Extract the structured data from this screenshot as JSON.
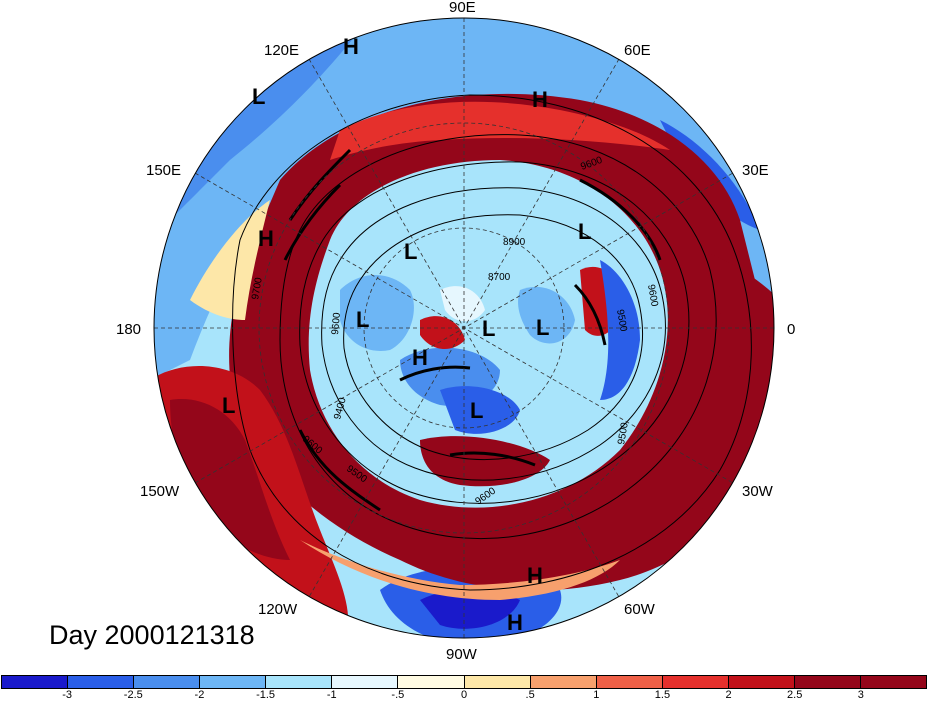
{
  "projection": "north-polar-stereographic",
  "day_label": "Day 2000121318",
  "longitude_labels": [
    {
      "id": "lon-90e",
      "text": "90E"
    },
    {
      "id": "lon-60e",
      "text": "60E"
    },
    {
      "id": "lon-30e",
      "text": "30E"
    },
    {
      "id": "lon-0",
      "text": "0"
    },
    {
      "id": "lon-30w",
      "text": "30W"
    },
    {
      "id": "lon-60w",
      "text": "60W"
    },
    {
      "id": "lon-90w",
      "text": "90W"
    },
    {
      "id": "lon-120w",
      "text": "120W"
    },
    {
      "id": "lon-150w",
      "text": "150W"
    },
    {
      "id": "lon-180",
      "text": "180"
    },
    {
      "id": "lon-150e",
      "text": "150E"
    },
    {
      "id": "lon-120e",
      "text": "120E"
    }
  ],
  "pressure_centers": [
    "H",
    "L",
    "H",
    "L",
    "H",
    "L",
    "L",
    "L",
    "L",
    "H",
    "L",
    "L",
    "H",
    "H"
  ],
  "contour_labels": [
    "9700",
    "9600",
    "9500",
    "9400",
    "9600",
    "9500",
    "9600",
    "9500",
    "9600",
    "8900",
    "8700",
    "9600"
  ],
  "colorbar": {
    "colors": [
      "#1a1acb",
      "#2a5ee8",
      "#4a8eee",
      "#6db6f5",
      "#a8e4fb",
      "#e6f7fe",
      "#fffbe3",
      "#fde7a8",
      "#f7a06d",
      "#ef6047",
      "#e5302c",
      "#c2111a",
      "#94061a"
    ],
    "tick_labels": [
      "-3",
      "-2.5",
      "-2",
      "-1.5",
      "-1",
      "-.5",
      "0",
      ".5",
      "1",
      "1.5",
      "2",
      "2.5",
      "3"
    ]
  }
}
